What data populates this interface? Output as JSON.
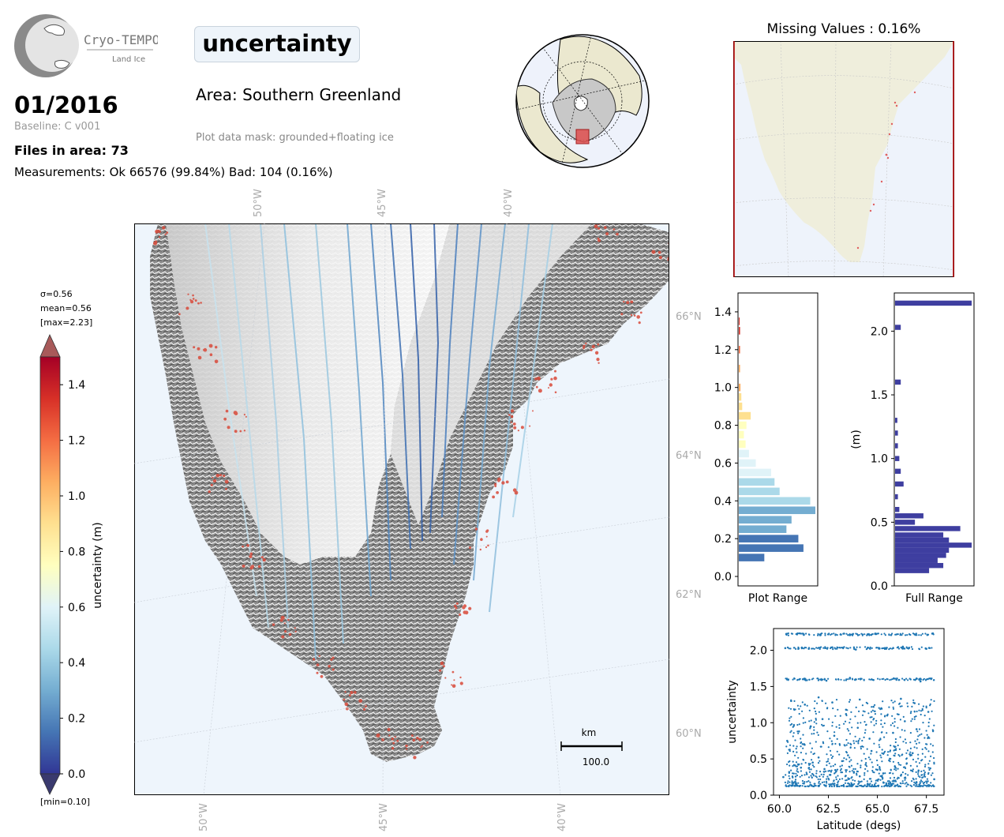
{
  "logo": {
    "name_line1": "Cryo-TEMPO",
    "name_line2": "Land Ice"
  },
  "header": {
    "date": "01/2016",
    "baseline": "Baseline: C v001",
    "files": "Files in area: 73",
    "measurements": "Measurements: Ok 66576 (99.84%) Bad: 104 (0.16%)",
    "parameter": "uncertainty",
    "area": "Area: Southern Greenland",
    "mask": "Plot data mask: grounded+floating ice"
  },
  "colorbar": {
    "stat_sigma": "σ=0.56",
    "stat_mean": "mean=0.56",
    "stat_max": "[max=2.23]",
    "stat_min": "[min=0.10]",
    "label": "uncertainty (m)",
    "ticks": [
      "0.0",
      "0.2",
      "0.4",
      "0.6",
      "0.8",
      "1.0",
      "1.2",
      "1.4"
    ],
    "range": [
      0.0,
      1.5
    ],
    "colors": [
      "#313695",
      "#4575b4",
      "#74add1",
      "#abd9e9",
      "#e0f3f8",
      "#ffffbf",
      "#fee090",
      "#fdae61",
      "#f46d43",
      "#d73027",
      "#a50026"
    ]
  },
  "map": {
    "lon_labels_top": [
      "50°W",
      "45°W",
      "40°W"
    ],
    "lon_labels_bottom": [
      "50°W",
      "45°W",
      "40°W"
    ],
    "lat_labels": [
      "66°N",
      "64°N",
      "62°N",
      "60°N"
    ],
    "scalebar_unit": "km",
    "scalebar_value": "100.0",
    "ocean_color": "#eef5fc",
    "land_color": "#7a7a7a"
  },
  "missing_panel": {
    "title": "Missing Values : 0.16%"
  },
  "chart_data": [
    {
      "type": "bar",
      "name": "plot-range-histogram",
      "orientation": "horizontal",
      "xlabel": "Plot Range",
      "ylim": [
        -0.05,
        1.5
      ],
      "yticks": [
        "0.0",
        "0.2",
        "0.4",
        "0.6",
        "0.8",
        "1.0",
        "1.2",
        "1.4"
      ],
      "y": [
        0.1,
        0.15,
        0.2,
        0.25,
        0.3,
        0.35,
        0.4,
        0.45,
        0.5,
        0.55,
        0.6,
        0.65,
        0.7,
        0.75,
        0.8,
        0.85,
        0.9,
        0.95,
        1.0,
        1.1,
        1.2,
        1.3,
        1.35
      ],
      "values": [
        300,
        760,
        700,
        560,
        620,
        900,
        840,
        480,
        420,
        380,
        200,
        120,
        80,
        60,
        90,
        140,
        40,
        30,
        20,
        15,
        15,
        15,
        10
      ]
    },
    {
      "type": "bar",
      "name": "full-range-histogram",
      "orientation": "horizontal",
      "xlabel": "Full Range",
      "ylabel": "(m)",
      "ylim": [
        0.0,
        2.3
      ],
      "yticks": [
        "0.0",
        "0.5",
        "1.0",
        "1.5",
        "2.0"
      ],
      "y": [
        0.12,
        0.16,
        0.2,
        0.24,
        0.28,
        0.32,
        0.36,
        0.4,
        0.45,
        0.5,
        0.55,
        0.6,
        0.7,
        0.8,
        0.9,
        1.0,
        1.1,
        1.2,
        1.3,
        1.6,
        2.03,
        2.22
      ],
      "values": [
        120,
        170,
        150,
        180,
        190,
        270,
        190,
        170,
        230,
        70,
        100,
        15,
        10,
        30,
        20,
        15,
        10,
        10,
        8,
        20,
        20,
        270
      ]
    },
    {
      "type": "scatter",
      "name": "uncertainty-vs-latitude",
      "xlabel": "Latitude (degs)",
      "ylabel": "uncertainty",
      "xlim": [
        59.7,
        68.4
      ],
      "ylim": [
        0.0,
        2.3
      ],
      "xticks": [
        "60.0",
        "62.5",
        "65.0",
        "67.5"
      ],
      "yticks": [
        "0.0",
        "0.5",
        "1.0",
        "1.5",
        "2.0"
      ],
      "x": [
        60.2,
        60.5,
        60.8,
        61.1,
        61.4,
        61.7,
        62.0,
        62.3,
        62.6,
        62.9,
        63.2,
        63.5,
        63.8,
        64.1,
        64.4,
        64.7,
        65.0,
        65.3,
        65.6,
        65.9,
        66.2,
        66.5,
        66.8,
        67.1,
        67.4,
        67.7,
        67.9,
        60.4,
        61.0,
        61.6,
        62.2,
        62.8,
        63.4,
        64.0,
        64.6,
        65.2,
        65.8,
        66.4,
        67.0,
        67.6,
        60.6,
        61.3,
        62.0,
        62.7,
        63.4,
        64.1,
        64.8,
        65.5,
        66.2,
        66.9,
        67.6,
        61.2,
        62.4,
        63.6,
        64.8,
        66.0,
        67.2,
        60.3,
        61.5,
        62.7,
        63.9,
        65.1,
        66.3,
        67.5,
        60.9,
        62.1,
        63.3,
        64.5,
        65.7,
        66.9,
        67.8
      ],
      "y": [
        0.25,
        0.32,
        0.41,
        0.38,
        0.29,
        0.45,
        0.52,
        0.36,
        0.28,
        0.33,
        0.47,
        0.55,
        0.31,
        0.26,
        0.42,
        0.61,
        0.35,
        0.3,
        0.48,
        0.39,
        0.27,
        0.44,
        0.58,
        0.34,
        0.29,
        0.37,
        0.22,
        0.75,
        0.88,
        0.95,
        1.05,
        0.82,
        1.12,
        0.93,
        0.78,
        1.2,
        0.86,
        1.02,
        0.91,
        0.8,
        1.3,
        1.25,
        1.35,
        1.28,
        1.18,
        1.32,
        1.22,
        1.1,
        1.33,
        1.27,
        1.15,
        1.6,
        1.58,
        1.62,
        1.59,
        1.61,
        1.57,
        2.03,
        2.02,
        2.04,
        2.01,
        2.03,
        2.05,
        2.02,
        2.22,
        2.21,
        2.23,
        2.22,
        2.21,
        2.22,
        2.23
      ]
    }
  ]
}
